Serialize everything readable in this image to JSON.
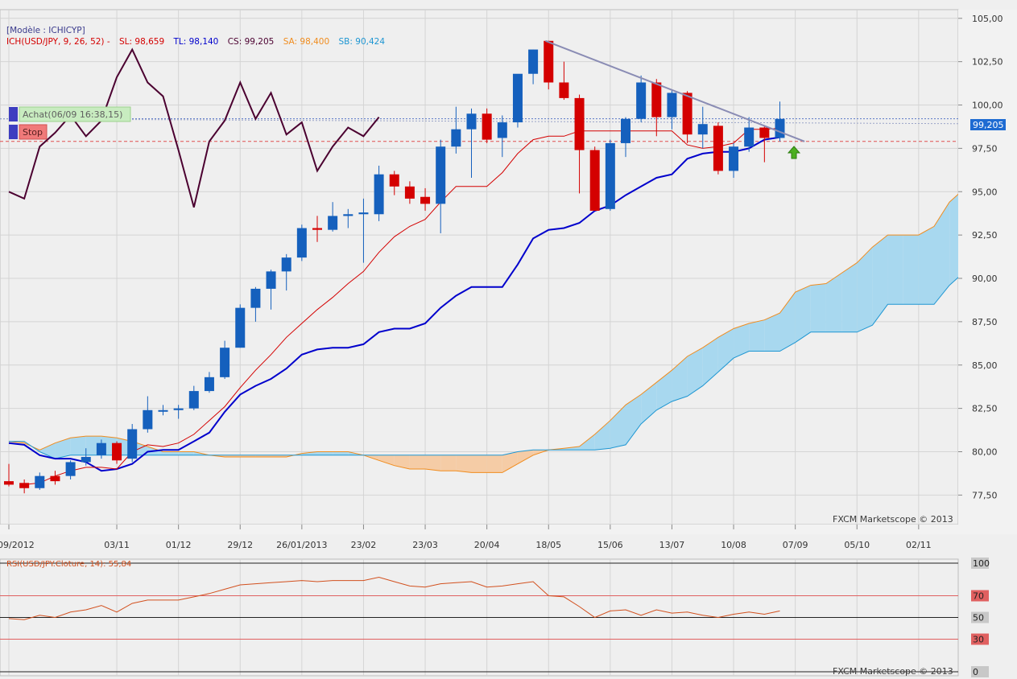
{
  "header": {
    "model": "[Modèle : ICHICYP]",
    "legend_name": "ICH(USD/JPY, 9, 26, 52) -",
    "legend_sl": "SL: 98,659",
    "legend_tl": "TL: 98,140",
    "legend_cs": "CS: 99,205",
    "legend_sa": "SA: 98,400",
    "legend_sb": "SB: 90,424"
  },
  "orders": {
    "buy_label": "Achat(06/09 16:38,15)",
    "stop_label": "Stop"
  },
  "watermark": "FXCM Marketscope © 2013",
  "current_price_label": "99,205",
  "colors": {
    "background": "#efefef",
    "grid": "#d4d4d4",
    "bull": "#1560bd",
    "bear": "#d40000",
    "tenkan": "#d40000",
    "kijun": "#0000cc",
    "chikou": "#4b0030",
    "span_a": "#f08c1e",
    "span_b": "#1e96d2",
    "cloud_bull": "#a8d8ef",
    "cloud_bear": "#f5cca6",
    "trendline": "#8a8cb4",
    "rsi_line": "#d2501e"
  },
  "chart_data": [
    {
      "type": "candlestick",
      "symbol": "USD/JPY",
      "ylim": [
        75.8,
        105.5
      ],
      "y_ticks": [
        "77,50",
        "80,00",
        "82,50",
        "85,00",
        "87,50",
        "90,00",
        "92,50",
        "95,00",
        "97,50",
        "100,00",
        "102,50",
        "105,00"
      ],
      "x_ticks": [
        "08/09/2012",
        "03/11",
        "01/12",
        "29/12",
        "26/01/2013",
        "23/02",
        "23/03",
        "20/04",
        "18/05",
        "15/06",
        "13/07",
        "10/08",
        "07/09",
        "05/10",
        "02/11"
      ],
      "x_tick_index": [
        0,
        7,
        11,
        15,
        19,
        23,
        27,
        31,
        35,
        39,
        43,
        47,
        51,
        55,
        59
      ],
      "x_range": [
        0,
        62
      ],
      "candles": [
        [
          78.3,
          79.3,
          78.0,
          78.1
        ],
        [
          78.2,
          78.4,
          77.6,
          77.9
        ],
        [
          77.9,
          78.8,
          77.8,
          78.6
        ],
        [
          78.6,
          78.9,
          78.1,
          78.3
        ],
        [
          78.6,
          79.5,
          78.4,
          79.4
        ],
        [
          79.4,
          80.2,
          79.2,
          79.7
        ],
        [
          79.8,
          80.7,
          79.6,
          80.5
        ],
        [
          80.5,
          80.6,
          79.3,
          79.5
        ],
        [
          79.6,
          81.6,
          79.4,
          81.3
        ],
        [
          81.3,
          83.2,
          81.1,
          82.4
        ],
        [
          82.4,
          82.7,
          82.1,
          82.4
        ],
        [
          82.4,
          82.7,
          81.9,
          82.5
        ],
        [
          82.5,
          83.8,
          82.4,
          83.5
        ],
        [
          83.5,
          84.6,
          83.4,
          84.3
        ],
        [
          84.3,
          86.4,
          84.2,
          86.0
        ],
        [
          86.0,
          88.5,
          86.0,
          88.3
        ],
        [
          88.3,
          89.5,
          87.5,
          89.4
        ],
        [
          89.4,
          90.5,
          88.2,
          90.4
        ],
        [
          90.4,
          91.4,
          89.3,
          91.2
        ],
        [
          91.2,
          93.1,
          91.0,
          92.9
        ],
        [
          92.9,
          93.6,
          92.1,
          92.8
        ],
        [
          92.8,
          94.4,
          92.7,
          93.6
        ],
        [
          93.6,
          94.0,
          92.9,
          93.7
        ],
        [
          93.7,
          94.6,
          90.9,
          93.8
        ],
        [
          93.7,
          96.5,
          93.3,
          96.0
        ],
        [
          96.0,
          96.2,
          94.8,
          95.3
        ],
        [
          95.3,
          95.6,
          94.3,
          94.6
        ],
        [
          94.7,
          95.2,
          93.9,
          94.3
        ],
        [
          94.3,
          98.0,
          92.6,
          97.6
        ],
        [
          97.6,
          99.9,
          97.2,
          98.6
        ],
        [
          98.6,
          99.8,
          95.8,
          99.5
        ],
        [
          99.5,
          99.8,
          97.8,
          98.0
        ],
        [
          98.1,
          99.4,
          97.0,
          99.0
        ],
        [
          99.0,
          101.6,
          98.7,
          101.8
        ],
        [
          101.8,
          103.2,
          101.2,
          103.2
        ],
        [
          103.7,
          103.7,
          100.9,
          101.3
        ],
        [
          101.3,
          102.5,
          100.3,
          100.4
        ],
        [
          100.4,
          100.6,
          94.9,
          97.4
        ],
        [
          97.4,
          97.6,
          94.0,
          93.9
        ],
        [
          94.0,
          98.0,
          93.9,
          97.8
        ],
        [
          97.8,
          99.3,
          97.0,
          99.2
        ],
        [
          99.2,
          101.7,
          99.0,
          101.3
        ],
        [
          101.3,
          101.5,
          98.2,
          99.3
        ],
        [
          99.3,
          100.9,
          98.6,
          100.7
        ],
        [
          100.7,
          100.8,
          97.8,
          98.3
        ],
        [
          98.3,
          99.9,
          97.5,
          98.9
        ],
        [
          98.8,
          99.0,
          96.0,
          96.2
        ],
        [
          96.2,
          97.8,
          95.8,
          97.6
        ],
        [
          97.6,
          99.3,
          97.3,
          98.7
        ],
        [
          98.7,
          98.8,
          96.7,
          98.1
        ],
        [
          98.1,
          100.2,
          97.9,
          99.2
        ]
      ],
      "tenkan": [
        [
          1,
          78.1
        ],
        [
          2,
          78.2
        ],
        [
          3,
          78.6
        ],
        [
          4,
          78.9
        ],
        [
          5,
          79.1
        ],
        [
          6,
          79.1
        ],
        [
          7,
          79.0
        ],
        [
          8,
          80.0
        ],
        [
          9,
          80.4
        ],
        [
          10,
          80.3
        ],
        [
          11,
          80.5
        ],
        [
          12,
          81.0
        ],
        [
          13,
          81.8
        ],
        [
          14,
          82.6
        ],
        [
          15,
          83.7
        ],
        [
          16,
          84.7
        ],
        [
          17,
          85.6
        ],
        [
          18,
          86.6
        ],
        [
          19,
          87.4
        ],
        [
          20,
          88.2
        ],
        [
          21,
          88.9
        ],
        [
          22,
          89.7
        ],
        [
          23,
          90.4
        ],
        [
          24,
          91.5
        ],
        [
          25,
          92.4
        ],
        [
          26,
          93.0
        ],
        [
          27,
          93.4
        ],
        [
          28,
          94.4
        ],
        [
          29,
          95.3
        ],
        [
          30,
          95.3
        ],
        [
          31,
          95.3
        ],
        [
          32,
          96.1
        ],
        [
          33,
          97.2
        ],
        [
          34,
          98.0
        ],
        [
          35,
          98.2
        ],
        [
          36,
          98.2
        ],
        [
          37,
          98.5
        ],
        [
          38,
          98.5
        ],
        [
          39,
          98.5
        ],
        [
          40,
          98.5
        ],
        [
          41,
          98.5
        ],
        [
          42,
          98.5
        ],
        [
          43,
          98.5
        ],
        [
          44,
          97.7
        ],
        [
          45,
          97.5
        ],
        [
          46,
          97.6
        ],
        [
          47,
          97.8
        ],
        [
          48,
          98.6
        ],
        [
          49,
          98.6
        ],
        [
          50,
          98.66
        ]
      ],
      "kijun": [
        [
          0,
          80.5
        ],
        [
          1,
          80.4
        ],
        [
          2,
          79.8
        ],
        [
          3,
          79.6
        ],
        [
          4,
          79.6
        ],
        [
          5,
          79.4
        ],
        [
          6,
          78.9
        ],
        [
          7,
          79.0
        ],
        [
          8,
          79.3
        ],
        [
          9,
          80.0
        ],
        [
          10,
          80.1
        ],
        [
          11,
          80.1
        ],
        [
          12,
          80.6
        ],
        [
          13,
          81.1
        ],
        [
          14,
          82.3
        ],
        [
          15,
          83.3
        ],
        [
          16,
          83.8
        ],
        [
          17,
          84.2
        ],
        [
          18,
          84.8
        ],
        [
          19,
          85.6
        ],
        [
          20,
          85.9
        ],
        [
          21,
          86.0
        ],
        [
          22,
          86.0
        ],
        [
          23,
          86.2
        ],
        [
          24,
          86.9
        ],
        [
          25,
          87.1
        ],
        [
          26,
          87.1
        ],
        [
          27,
          87.4
        ],
        [
          28,
          88.3
        ],
        [
          29,
          89.0
        ],
        [
          30,
          89.5
        ],
        [
          31,
          89.5
        ],
        [
          32,
          89.5
        ],
        [
          33,
          90.8
        ],
        [
          34,
          92.3
        ],
        [
          35,
          92.8
        ],
        [
          36,
          92.9
        ],
        [
          37,
          93.2
        ],
        [
          38,
          93.9
        ],
        [
          39,
          94.2
        ],
        [
          40,
          94.8
        ],
        [
          41,
          95.3
        ],
        [
          42,
          95.8
        ],
        [
          43,
          96.0
        ],
        [
          44,
          96.9
        ],
        [
          45,
          97.2
        ],
        [
          46,
          97.3
        ],
        [
          47,
          97.3
        ],
        [
          48,
          97.5
        ],
        [
          49,
          98.0
        ],
        [
          50,
          98.14
        ]
      ],
      "chikou": [
        [
          0,
          95.0
        ],
        [
          1,
          94.6
        ],
        [
          2,
          97.6
        ],
        [
          3,
          98.4
        ],
        [
          4,
          99.4
        ],
        [
          5,
          98.2
        ],
        [
          6,
          99.1
        ],
        [
          7,
          101.6
        ],
        [
          8,
          103.2
        ],
        [
          9,
          101.3
        ],
        [
          10,
          100.5
        ],
        [
          11,
          97.4
        ],
        [
          12,
          94.1
        ],
        [
          13,
          97.9
        ],
        [
          14,
          99.1
        ],
        [
          15,
          101.3
        ],
        [
          16,
          99.2
        ],
        [
          17,
          100.7
        ],
        [
          18,
          98.3
        ],
        [
          19,
          99.0
        ],
        [
          20,
          96.2
        ],
        [
          21,
          97.6
        ],
        [
          22,
          98.7
        ],
        [
          23,
          98.2
        ],
        [
          24,
          99.3
        ]
      ],
      "cloud_x": [
        0,
        1,
        2,
        3,
        4,
        5,
        6,
        7,
        8,
        9,
        10,
        11,
        12,
        13,
        14,
        15,
        16,
        17,
        18,
        19,
        20,
        21,
        22,
        23,
        24,
        25,
        26,
        27,
        28,
        29,
        30,
        31,
        32,
        33,
        34,
        35,
        36,
        37,
        38,
        39,
        40,
        41,
        42,
        43,
        44,
        45,
        46,
        47,
        48,
        49,
        50,
        51,
        52,
        53,
        54,
        55,
        56,
        57,
        58,
        59,
        60,
        61,
        62
      ],
      "span_a": [
        80.6,
        80.5,
        80.1,
        80.5,
        80.8,
        80.9,
        80.9,
        80.8,
        80.6,
        80.3,
        80.0,
        80.0,
        80.0,
        79.8,
        79.7,
        79.7,
        79.7,
        79.7,
        79.7,
        79.9,
        80.0,
        80.0,
        80.0,
        79.8,
        79.5,
        79.2,
        79.0,
        79.0,
        78.9,
        78.9,
        78.8,
        78.8,
        78.8,
        79.3,
        79.8,
        80.1,
        80.2,
        80.3,
        81.0,
        81.8,
        82.7,
        83.3,
        84.0,
        84.7,
        85.5,
        86.0,
        86.6,
        87.1,
        87.4,
        87.6,
        88.0,
        89.2,
        89.6,
        89.7,
        90.3,
        90.9,
        91.8,
        92.5,
        92.5,
        92.5,
        93.0,
        94.4,
        95.2
      ],
      "span_b": [
        80.6,
        80.6,
        80.0,
        79.6,
        79.8,
        79.8,
        79.8,
        79.8,
        79.8,
        79.8,
        79.8,
        79.8,
        79.8,
        79.8,
        79.8,
        79.8,
        79.8,
        79.8,
        79.8,
        79.8,
        79.8,
        79.8,
        79.8,
        79.8,
        79.8,
        79.8,
        79.8,
        79.8,
        79.8,
        79.8,
        79.8,
        79.8,
        79.8,
        80.0,
        80.1,
        80.1,
        80.1,
        80.1,
        80.1,
        80.2,
        80.4,
        81.6,
        82.4,
        82.9,
        83.2,
        83.8,
        84.6,
        85.4,
        85.8,
        85.8,
        85.8,
        86.3,
        86.9,
        86.9,
        86.9,
        86.9,
        87.3,
        88.5,
        88.5,
        88.5,
        88.5,
        89.6,
        90.4
      ],
      "trendline": [
        [
          34.8,
          103.7
        ],
        [
          51.6,
          97.9
        ]
      ],
      "levels": {
        "achat": 99.205,
        "stop": 97.9,
        "chikou_ref": 99.2
      },
      "current_price": 99.205
    },
    {
      "type": "line",
      "title": "RSI(USD/JPY.Cloture, 14): 55,84",
      "ylim": [
        0,
        100
      ],
      "y_ticks": [
        "0",
        "30",
        "50",
        "70",
        "100"
      ],
      "levels": [
        100,
        70,
        50,
        30,
        0
      ],
      "x_range": [
        0,
        62
      ],
      "x": [
        0,
        1,
        2,
        3,
        4,
        5,
        6,
        7,
        8,
        9,
        10,
        11,
        12,
        13,
        14,
        15,
        16,
        17,
        18,
        19,
        20,
        21,
        22,
        23,
        24,
        25,
        26,
        27,
        28,
        29,
        30,
        31,
        32,
        33,
        34,
        35,
        36,
        37,
        38,
        39,
        40,
        41,
        42,
        43,
        44,
        45,
        46,
        47,
        48,
        49,
        50
      ],
      "values": [
        49,
        48,
        52,
        50,
        55,
        57,
        61,
        55,
        63,
        66,
        66,
        66,
        69,
        72,
        76,
        80,
        81,
        82,
        83,
        84,
        83,
        84,
        84,
        84,
        87,
        83,
        79,
        78,
        81,
        82,
        83,
        78,
        79,
        81,
        83,
        70,
        69,
        60,
        50,
        56,
        57,
        52,
        57,
        54,
        55,
        52,
        50,
        53,
        55,
        53,
        56
      ]
    }
  ]
}
